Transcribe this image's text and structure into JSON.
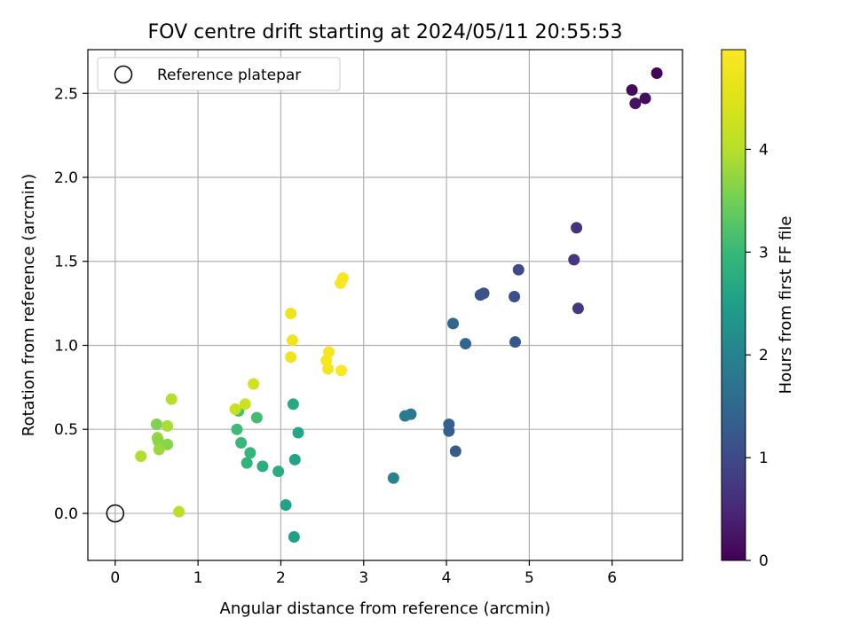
{
  "chart_data": {
    "type": "scatter",
    "title": "FOV centre drift starting at 2024/05/11 20:55:53",
    "xlabel": "Angular distance from reference (arcmin)",
    "ylabel": "Rotation from reference (arcmin)",
    "xlim": [
      -0.33,
      6.85
    ],
    "ylim": [
      -0.28,
      2.76
    ],
    "xticks": [
      "0",
      "1",
      "2",
      "3",
      "4",
      "5",
      "6"
    ],
    "yticks": [
      "0.0",
      "0.5",
      "1.0",
      "1.5",
      "2.0",
      "2.5"
    ],
    "grid": true,
    "legend": {
      "position": "top-left",
      "entries": [
        "Reference platepar"
      ]
    },
    "reference_point": {
      "x": 0,
      "y": 0,
      "marker": "open-circle",
      "color": "#000000"
    },
    "colorbar": {
      "label": "Hours from first FF file",
      "range": [
        0,
        4.97
      ],
      "ticks": [
        "0",
        "1",
        "2",
        "3",
        "4"
      ],
      "colormap": "viridis"
    },
    "points": [
      {
        "x": 6.54,
        "y": 2.62,
        "hours": 0.05
      },
      {
        "x": 6.24,
        "y": 2.52,
        "hours": 0.1
      },
      {
        "x": 6.4,
        "y": 2.47,
        "hours": 0.15
      },
      {
        "x": 6.28,
        "y": 2.44,
        "hours": 0.2
      },
      {
        "x": 5.57,
        "y": 1.7,
        "hours": 0.65
      },
      {
        "x": 5.54,
        "y": 1.51,
        "hours": 0.7
      },
      {
        "x": 5.59,
        "y": 1.22,
        "hours": 0.75
      },
      {
        "x": 4.87,
        "y": 1.45,
        "hours": 1.0
      },
      {
        "x": 4.45,
        "y": 1.31,
        "hours": 1.1
      },
      {
        "x": 4.41,
        "y": 1.3,
        "hours": 1.15
      },
      {
        "x": 4.82,
        "y": 1.29,
        "hours": 1.1
      },
      {
        "x": 4.83,
        "y": 1.02,
        "hours": 1.2
      },
      {
        "x": 4.08,
        "y": 1.13,
        "hours": 1.5
      },
      {
        "x": 4.23,
        "y": 1.01,
        "hours": 1.45
      },
      {
        "x": 4.11,
        "y": 0.37,
        "hours": 1.3
      },
      {
        "x": 4.03,
        "y": 0.53,
        "hours": 1.4
      },
      {
        "x": 4.03,
        "y": 0.49,
        "hours": 1.35
      },
      {
        "x": 3.57,
        "y": 0.59,
        "hours": 1.8
      },
      {
        "x": 3.5,
        "y": 0.58,
        "hours": 1.85
      },
      {
        "x": 3.36,
        "y": 0.21,
        "hours": 2.0
      },
      {
        "x": 2.15,
        "y": 0.65,
        "hours": 2.7
      },
      {
        "x": 2.21,
        "y": 0.48,
        "hours": 2.65
      },
      {
        "x": 2.17,
        "y": 0.32,
        "hours": 2.6
      },
      {
        "x": 2.06,
        "y": 0.05,
        "hours": 2.55
      },
      {
        "x": 2.16,
        "y": -0.14,
        "hours": 2.5
      },
      {
        "x": 1.97,
        "y": 0.25,
        "hours": 2.75
      },
      {
        "x": 1.78,
        "y": 0.28,
        "hours": 2.8
      },
      {
        "x": 1.59,
        "y": 0.3,
        "hours": 2.9
      },
      {
        "x": 1.63,
        "y": 0.36,
        "hours": 2.95
      },
      {
        "x": 1.52,
        "y": 0.42,
        "hours": 3.0
      },
      {
        "x": 1.47,
        "y": 0.5,
        "hours": 3.05
      },
      {
        "x": 1.49,
        "y": 0.61,
        "hours": 3.15
      },
      {
        "x": 1.71,
        "y": 0.57,
        "hours": 3.1
      },
      {
        "x": 1.45,
        "y": 0.62,
        "hours": 4.2
      },
      {
        "x": 1.57,
        "y": 0.65,
        "hours": 4.25
      },
      {
        "x": 1.67,
        "y": 0.77,
        "hours": 4.3
      },
      {
        "x": 0.68,
        "y": 0.68,
        "hours": 4.0
      },
      {
        "x": 0.5,
        "y": 0.53,
        "hours": 3.6
      },
      {
        "x": 0.63,
        "y": 0.52,
        "hours": 3.9
      },
      {
        "x": 0.51,
        "y": 0.45,
        "hours": 3.75
      },
      {
        "x": 0.52,
        "y": 0.43,
        "hours": 3.7
      },
      {
        "x": 0.63,
        "y": 0.41,
        "hours": 3.65
      },
      {
        "x": 0.53,
        "y": 0.38,
        "hours": 3.8
      },
      {
        "x": 0.31,
        "y": 0.34,
        "hours": 3.95
      },
      {
        "x": 0.77,
        "y": 0.01,
        "hours": 4.05
      },
      {
        "x": 2.12,
        "y": 1.19,
        "hours": 4.7
      },
      {
        "x": 2.14,
        "y": 1.03,
        "hours": 4.72
      },
      {
        "x": 2.12,
        "y": 0.93,
        "hours": 4.74
      },
      {
        "x": 2.75,
        "y": 1.4,
        "hours": 4.9
      },
      {
        "x": 2.72,
        "y": 1.37,
        "hours": 4.88
      },
      {
        "x": 2.58,
        "y": 0.96,
        "hours": 4.85
      },
      {
        "x": 2.55,
        "y": 0.91,
        "hours": 4.83
      },
      {
        "x": 2.57,
        "y": 0.86,
        "hours": 4.8
      },
      {
        "x": 2.73,
        "y": 0.85,
        "hours": 4.95
      }
    ]
  }
}
